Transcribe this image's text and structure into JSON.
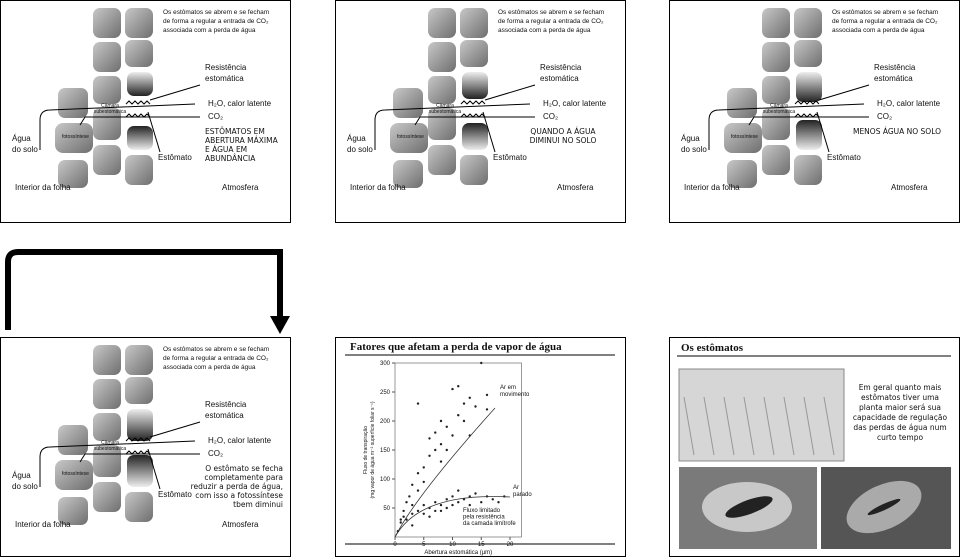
{
  "slides": [
    {
      "note": [
        "Os estômatos se abrem e se fecham",
        "de forma a regular a entrada de CO₂",
        "associada com a perda de água"
      ],
      "resistance": [
        "Resistência",
        "estomática"
      ],
      "chamber": [
        "Câmara",
        "subestomática"
      ],
      "h2o": "H₂O, calor latente",
      "co2": "CO₂",
      "water": [
        "Água",
        "do solo"
      ],
      "photosynthesis": "fotossíntese",
      "stomate": "Estômato",
      "caption": [
        "ESTÔMATOS EM",
        "ABERTURA MÁXIMA",
        "E ÁGUA EM",
        "ABUNDÂNCIA"
      ],
      "interior": "Interior da folha",
      "atmosphere": "Atmosfera"
    },
    {
      "note": [
        "Os estômatos se abrem e se fecham",
        "de forma a regular a entrada de CO₂",
        "associada com a perda de água"
      ],
      "resistance": [
        "Resistência",
        "estomática"
      ],
      "chamber": [
        "Câmara",
        "subestomática"
      ],
      "h2o": "H₂O, calor latente",
      "co2": "CO₂",
      "water": [
        "Água",
        "do solo"
      ],
      "photosynthesis": "fotossíntese",
      "stomate": "Estômato",
      "caption": [
        "QUANDO A ÁGUA",
        "DIMINUI NO SOLO"
      ],
      "interior": "Interior da folha",
      "atmosphere": "Atmosfera"
    },
    {
      "note": [
        "Os estômatos se abrem e se fecham",
        "de forma a regular a entrada de CO₂",
        "associada com a perda de água"
      ],
      "resistance": [
        "Resistência",
        "estomática"
      ],
      "chamber": [
        "Câmara",
        "subestomática"
      ],
      "h2o": "H₂O, calor latente",
      "co2": "CO₂",
      "water": [
        "Água",
        "do solo"
      ],
      "photosynthesis": "fotossíntese",
      "stomate": "Estômato",
      "caption": [
        "MENOS ÁGUA NO SOLO"
      ],
      "interior": "Interior da folha",
      "atmosphere": "Atmosfera"
    },
    {
      "note": [
        "Os estômatos se abrem e se fecham",
        "de forma a regular a entrada de CO₂",
        "associada com a perda de água"
      ],
      "resistance": [
        "Resistência",
        "estomática"
      ],
      "chamber": [
        "Câmara",
        "subestomática"
      ],
      "h2o": "H₂O, calor latente",
      "co2": "CO₂",
      "water": [
        "Água",
        "do solo"
      ],
      "photosynthesis": "fotossíntese",
      "stomate": "Estômato",
      "caption": [
        "O estômato se fecha",
        "completamente para",
        "reduzir a perda de água,",
        "com isso a fotossíntese",
        "tbem diminui"
      ],
      "interior": "Interior da folha",
      "atmosphere": "Atmosfera"
    },
    {
      "title": "Fatores que afetam a perda de vapor de água",
      "chart": {
        "type": "scatter",
        "ylabel": [
          "Fluxo de transpiração",
          "(mg vapor de água m⁻² superfície foliar s⁻¹)"
        ],
        "xlabel": "Abertura estomática (µm)",
        "xlim": [
          0,
          22
        ],
        "ylim": [
          0,
          300
        ],
        "xticks": [
          0,
          5,
          10,
          15,
          20
        ],
        "yticks": [
          50,
          100,
          150,
          200,
          250,
          300
        ],
        "annotation": [
          "Fluxo limitado",
          "pela resistência",
          "da camada limítrofe"
        ],
        "series": [
          {
            "label": [
              "Ar em",
              "movimento"
            ],
            "color": "#222222",
            "x": [
              1,
              1.5,
              2,
              2.5,
              3,
              3,
              4,
              4,
              5,
              5,
              6,
              6,
              7,
              7,
              8,
              8,
              9,
              9,
              10,
              10,
              11,
              11,
              12,
              12,
              13,
              14,
              15,
              16,
              16,
              4,
              8,
              13
            ],
            "values": [
              30,
              45,
              60,
              70,
              90,
              55,
              110,
              80,
              120,
              95,
              140,
              170,
              150,
              180,
              160,
              200,
              190,
              150,
              175,
              255,
              210,
              260,
              200,
              230,
              240,
              225,
              300,
              245,
              220,
              230,
              130,
              175
            ]
          },
          {
            "label": [
              "Ar",
              "parado"
            ],
            "color": "#222222",
            "x": [
              0.5,
              1,
              1.5,
              2,
              3,
              3,
              4,
              5,
              5,
              6,
              7,
              7,
              8,
              9,
              9,
              10,
              10,
              11,
              12,
              13,
              13,
              14,
              15,
              16,
              17,
              18,
              19,
              11,
              6,
              8
            ],
            "values": [
              10,
              25,
              35,
              30,
              40,
              20,
              45,
              40,
              55,
              50,
              60,
              45,
              55,
              65,
              50,
              55,
              70,
              60,
              65,
              70,
              55,
              75,
              60,
              70,
              65,
              60,
              70,
              80,
              35,
              45
            ]
          }
        ]
      }
    },
    {
      "title": "Os estômatos",
      "text": [
        "Em geral quanto mais",
        "estômatos tiver uma",
        "planta maior será sua",
        "capacidade de regulação",
        "das perdas de água num",
        "curto tempo"
      ]
    }
  ]
}
